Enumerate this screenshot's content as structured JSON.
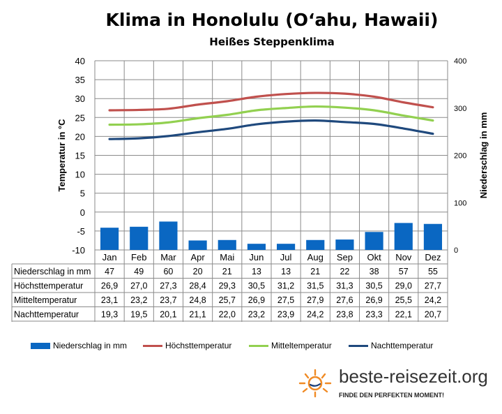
{
  "title": "Klima in Honolulu (O‘ahu, Hawaii)",
  "subtitle": "Heißes Steppenklima",
  "colors": {
    "precip": "#0a67c2",
    "high": "#c0504d",
    "mean": "#92d050",
    "night": "#1f497d"
  },
  "chart_data": {
    "type": "bar",
    "categories": [
      "Jan",
      "Feb",
      "Mar",
      "Apr",
      "Mai",
      "Jun",
      "Jul",
      "Aug",
      "Sep",
      "Okt",
      "Nov",
      "Dez"
    ],
    "ylabel": "Temperatur in °C",
    "y2label": "Niederschlag in mm",
    "ylim": [
      -10,
      40
    ],
    "y2lim": [
      0,
      400
    ],
    "yticks": [
      "40",
      "35",
      "30",
      "25",
      "20",
      "15",
      "10",
      "5",
      "0",
      "-5",
      "-10"
    ],
    "y2ticks": [
      "400",
      "300",
      "200",
      "100",
      "0"
    ],
    "grid": true,
    "legend_position": "bottom",
    "series": [
      {
        "name": "Niederschlag in mm",
        "kind": "bar",
        "axis": "right",
        "values": [
          "47",
          "49",
          "60",
          "20",
          "21",
          "13",
          "13",
          "21",
          "22",
          "38",
          "57",
          "55"
        ]
      },
      {
        "name": "Höchsttemperatur",
        "kind": "line",
        "axis": "left",
        "values": [
          "26,9",
          "27,0",
          "27,3",
          "28,4",
          "29,3",
          "30,5",
          "31,2",
          "31,5",
          "31,3",
          "30,5",
          "29,0",
          "27,7"
        ]
      },
      {
        "name": "Mitteltemperatur",
        "kind": "line",
        "axis": "left",
        "values": [
          "23,1",
          "23,2",
          "23,7",
          "24,8",
          "25,7",
          "26,9",
          "27,5",
          "27,9",
          "27,6",
          "26,9",
          "25,5",
          "24,2"
        ]
      },
      {
        "name": "Nachttemperatur",
        "kind": "line",
        "axis": "left",
        "values": [
          "19,3",
          "19,5",
          "20,1",
          "21,1",
          "22,0",
          "23,2",
          "23,9",
          "24,2",
          "23,8",
          "23,3",
          "22,1",
          "20,7"
        ]
      }
    ]
  },
  "brand": {
    "name": "beste-reisezeit.org",
    "tagline": "FINDE DEN PERFEKTEN MOMENT!"
  }
}
